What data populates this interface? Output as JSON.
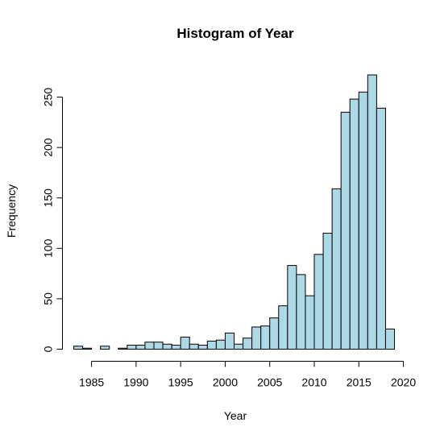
{
  "chart_data": {
    "type": "bar",
    "title": "Histogram of Year",
    "xlabel": "Year",
    "ylabel": "Frequency",
    "bins": [
      {
        "start": 1983,
        "end": 1984,
        "count": 3
      },
      {
        "start": 1984,
        "end": 1985,
        "count": 1
      },
      {
        "start": 1985,
        "end": 1986,
        "count": 0
      },
      {
        "start": 1986,
        "end": 1987,
        "count": 3
      },
      {
        "start": 1987,
        "end": 1988,
        "count": 0
      },
      {
        "start": 1988,
        "end": 1989,
        "count": 1
      },
      {
        "start": 1989,
        "end": 1990,
        "count": 4
      },
      {
        "start": 1990,
        "end": 1991,
        "count": 4
      },
      {
        "start": 1991,
        "end": 1992,
        "count": 7
      },
      {
        "start": 1992,
        "end": 1993,
        "count": 7
      },
      {
        "start": 1993,
        "end": 1994,
        "count": 5
      },
      {
        "start": 1994,
        "end": 1995,
        "count": 4
      },
      {
        "start": 1995,
        "end": 1996,
        "count": 12
      },
      {
        "start": 1996,
        "end": 1997,
        "count": 5
      },
      {
        "start": 1997,
        "end": 1998,
        "count": 4
      },
      {
        "start": 1998,
        "end": 1999,
        "count": 8
      },
      {
        "start": 1999,
        "end": 2000,
        "count": 9
      },
      {
        "start": 2000,
        "end": 2001,
        "count": 16
      },
      {
        "start": 2001,
        "end": 2002,
        "count": 5
      },
      {
        "start": 2002,
        "end": 2003,
        "count": 11
      },
      {
        "start": 2003,
        "end": 2004,
        "count": 22
      },
      {
        "start": 2004,
        "end": 2005,
        "count": 23
      },
      {
        "start": 2005,
        "end": 2006,
        "count": 31
      },
      {
        "start": 2006,
        "end": 2007,
        "count": 43
      },
      {
        "start": 2007,
        "end": 2008,
        "count": 83
      },
      {
        "start": 2008,
        "end": 2009,
        "count": 74
      },
      {
        "start": 2009,
        "end": 2010,
        "count": 53
      },
      {
        "start": 2010,
        "end": 2011,
        "count": 94
      },
      {
        "start": 2011,
        "end": 2012,
        "count": 115
      },
      {
        "start": 2012,
        "end": 2013,
        "count": 159
      },
      {
        "start": 2013,
        "end": 2014,
        "count": 235
      },
      {
        "start": 2014,
        "end": 2015,
        "count": 248
      },
      {
        "start": 2015,
        "end": 2016,
        "count": 255
      },
      {
        "start": 2016,
        "end": 2017,
        "count": 272
      },
      {
        "start": 2017,
        "end": 2018,
        "count": 239
      },
      {
        "start": 2018,
        "end": 2019,
        "count": 20
      }
    ],
    "xlim": [
      1983,
      2019
    ],
    "ylim": [
      0,
      272
    ],
    "x_ticks": [
      1985,
      1990,
      1995,
      2000,
      2005,
      2010,
      2015,
      2020
    ],
    "y_ticks": [
      0,
      50,
      100,
      150,
      200,
      250
    ],
    "bar_color": "#add8e6",
    "bar_border": "#000000",
    "grid": false,
    "legend": "none"
  }
}
